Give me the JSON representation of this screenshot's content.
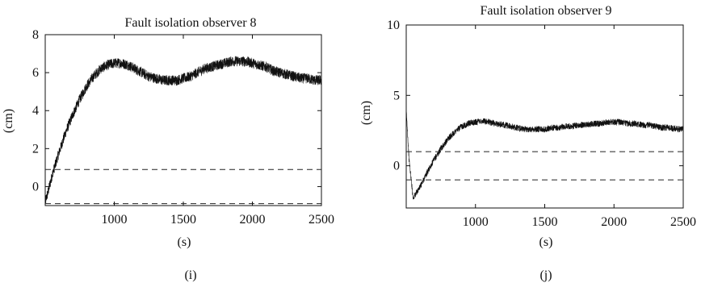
{
  "chart_data": [
    {
      "id": "i",
      "type": "line",
      "title": "Fault isolation observer 8",
      "xlabel": "(s)",
      "ylabel": "(cm)",
      "panel_label": "(i)",
      "xlim": [
        500,
        2500
      ],
      "ylim": [
        -1,
        8
      ],
      "xticks": [
        1000,
        1500,
        2000,
        2500
      ],
      "yticks": [
        0,
        2,
        4,
        6,
        8
      ],
      "grid": false,
      "series": [
        {
          "style": "solid-noisy",
          "noise_band": 0.55,
          "x": [
            500,
            520,
            550,
            600,
            650,
            700,
            750,
            800,
            850,
            900,
            950,
            1000,
            1050,
            1100,
            1150,
            1200,
            1250,
            1300,
            1350,
            1400,
            1450,
            1500,
            1550,
            1600,
            1650,
            1700,
            1750,
            1800,
            1850,
            1900,
            1950,
            2000,
            2050,
            2100,
            2150,
            2200,
            2250,
            2300,
            2350,
            2400,
            2450,
            2500
          ],
          "y": [
            -0.8,
            -0.3,
            0.6,
            1.8,
            2.9,
            3.8,
            4.6,
            5.3,
            5.8,
            6.2,
            6.4,
            6.5,
            6.5,
            6.4,
            6.2,
            6.0,
            5.8,
            5.7,
            5.6,
            5.6,
            5.6,
            5.7,
            5.8,
            6.0,
            6.2,
            6.3,
            6.4,
            6.5,
            6.6,
            6.6,
            6.6,
            6.5,
            6.4,
            6.3,
            6.1,
            6.0,
            5.9,
            5.8,
            5.7,
            5.7,
            5.6,
            5.6
          ]
        },
        {
          "style": "dashed",
          "x": [
            500,
            2500
          ],
          "y": [
            0.9,
            0.9
          ]
        },
        {
          "style": "dashed",
          "x": [
            500,
            2500
          ],
          "y": [
            -0.9,
            -0.9
          ]
        }
      ]
    },
    {
      "id": "j",
      "type": "line",
      "title": "Fault isolation observer 9",
      "xlabel": "(s)",
      "ylabel": "(cm)",
      "panel_label": "(j)",
      "xlim": [
        500,
        2500
      ],
      "ylim": [
        -3,
        10
      ],
      "xticks": [
        1000,
        1500,
        2000,
        2500
      ],
      "yticks": [
        0,
        5,
        10
      ],
      "grid": false,
      "series": [
        {
          "style": "solid-noisy",
          "noise_band": 0.45,
          "x": [
            500,
            520,
            550,
            600,
            650,
            700,
            750,
            800,
            850,
            900,
            950,
            1000,
            1050,
            1100,
            1150,
            1200,
            1250,
            1300,
            1350,
            1400,
            1450,
            1500,
            1550,
            1600,
            1650,
            1700,
            1750,
            1800,
            1850,
            1900,
            1950,
            2000,
            2050,
            2100,
            2150,
            2200,
            2250,
            2300,
            2350,
            2400,
            2450,
            2500
          ],
          "y": [
            4.0,
            0.5,
            -2.3,
            -1.5,
            -0.5,
            0.4,
            1.2,
            1.9,
            2.4,
            2.8,
            3.0,
            3.1,
            3.2,
            3.1,
            3.0,
            2.9,
            2.8,
            2.7,
            2.6,
            2.6,
            2.6,
            2.6,
            2.7,
            2.7,
            2.8,
            2.8,
            2.9,
            2.9,
            3.0,
            3.0,
            3.1,
            3.1,
            3.1,
            3.0,
            3.0,
            2.9,
            2.9,
            2.8,
            2.7,
            2.7,
            2.6,
            2.6
          ]
        },
        {
          "style": "dashed",
          "x": [
            500,
            2500
          ],
          "y": [
            1.0,
            1.0
          ]
        },
        {
          "style": "dashed",
          "x": [
            500,
            2500
          ],
          "y": [
            -1.0,
            -1.0
          ]
        }
      ]
    }
  ]
}
